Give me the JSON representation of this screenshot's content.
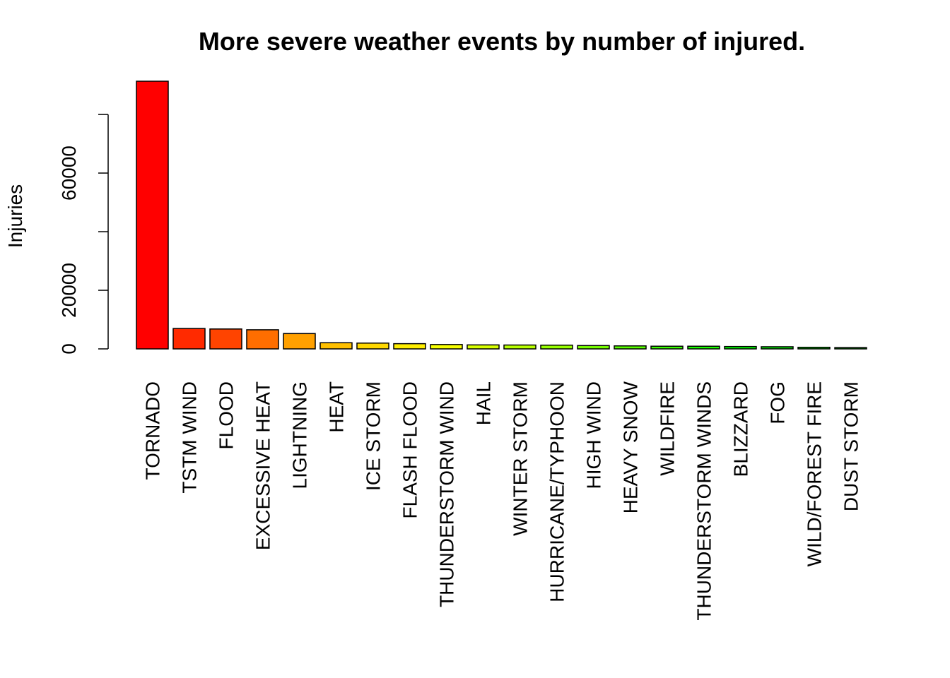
{
  "chart_data": {
    "type": "bar",
    "title": "More severe weather events by number of injured.",
    "xlabel": "",
    "ylabel": "Injuries",
    "ylim": [
      0,
      91346
    ],
    "yticks": [
      0,
      20000,
      40000,
      60000,
      80000
    ],
    "ytick_labels": [
      "0",
      "20000",
      "",
      "60000",
      ""
    ],
    "categories": [
      "TORNADO",
      "TSTM WIND",
      "FLOOD",
      "EXCESSIVE HEAT",
      "LIGHTNING",
      "HEAT",
      "ICE STORM",
      "FLASH FLOOD",
      "THUNDERSTORM WIND",
      "HAIL",
      "WINTER STORM",
      "HURRICANE/TYPHOON",
      "HIGH WIND",
      "HEAVY SNOW",
      "WILDFIRE",
      "THUNDERSTORM WINDS",
      "BLIZZARD",
      "FOG",
      "WILD/FOREST FIRE",
      "DUST STORM"
    ],
    "values": [
      91346,
      6957,
      6789,
      6525,
      5230,
      2100,
      1975,
      1777,
      1488,
      1361,
      1321,
      1275,
      1137,
      1021,
      911,
      908,
      805,
      734,
      545,
      440
    ],
    "colors": [
      "#FF0000",
      "#FF2A00",
      "#FF4400",
      "#FF6E00",
      "#FFA000",
      "#FFC000",
      "#FFD800",
      "#FFEE00",
      "#F6FF00",
      "#D6FF00",
      "#B6FF00",
      "#96FF00",
      "#77FF00",
      "#57FF00",
      "#38FF00",
      "#19FF00",
      "#00FF00",
      "#00E000",
      "#00C000",
      "#00A000"
    ],
    "grid": false,
    "legend": "none"
  }
}
